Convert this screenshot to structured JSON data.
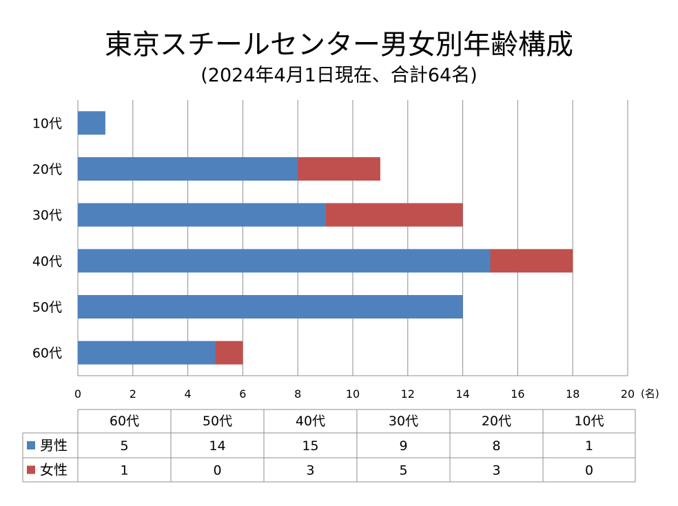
{
  "chart_data": {
    "type": "bar",
    "orientation": "horizontal",
    "stacked": true,
    "title": "東京スチールセンター男女別年齢構成",
    "subtitle": "(2024年4月1日現在、合計64名)",
    "categories": [
      "10代",
      "20代",
      "30代",
      "40代",
      "50代",
      "60代"
    ],
    "series": [
      {
        "name": "男性",
        "color": "#4f81bd",
        "values": [
          1,
          8,
          9,
          15,
          14,
          5
        ]
      },
      {
        "name": "女性",
        "color": "#c0504d",
        "values": [
          0,
          3,
          5,
          3,
          0,
          1
        ]
      }
    ],
    "xlim": [
      0,
      20
    ],
    "xticks": [
      0,
      2,
      4,
      6,
      8,
      10,
      12,
      14,
      16,
      18,
      20
    ],
    "xunit": "(名)",
    "grid": true,
    "data_table": {
      "columns": [
        "60代",
        "50代",
        "40代",
        "30代",
        "20代",
        "10代"
      ],
      "rows": [
        {
          "label": "男性",
          "color": "#4f81bd",
          "values": [
            5,
            14,
            15,
            9,
            8,
            1
          ]
        },
        {
          "label": "女性",
          "color": "#c0504d",
          "values": [
            1,
            0,
            3,
            5,
            3,
            0
          ]
        }
      ]
    }
  }
}
